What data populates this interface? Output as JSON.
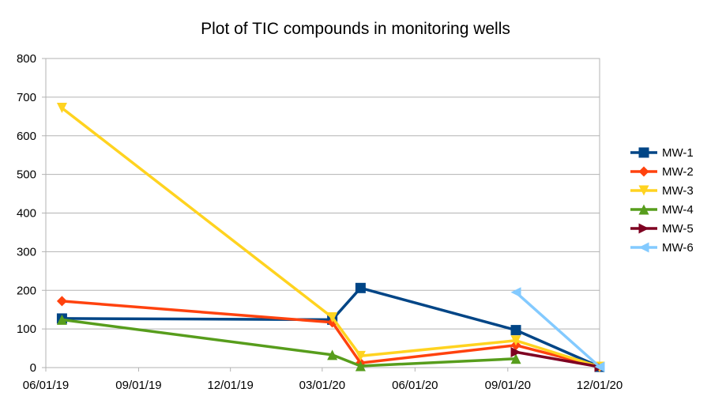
{
  "chart_data": {
    "type": "line",
    "title": "Plot of TIC compounds in monitoring wells",
    "xlabel": "",
    "ylabel": "",
    "xlim": [
      "2019-06-01",
      "2020-12-01"
    ],
    "ylim": [
      0,
      800
    ],
    "y_ticks": [
      0,
      100,
      200,
      300,
      400,
      500,
      600,
      700,
      800
    ],
    "x_ticks": [
      {
        "date": "2019-06-01",
        "label": "06/01/19"
      },
      {
        "date": "2019-09-01",
        "label": "09/01/19"
      },
      {
        "date": "2019-12-01",
        "label": "12/01/19"
      },
      {
        "date": "2020-03-01",
        "label": "03/01/20"
      },
      {
        "date": "2020-06-01",
        "label": "06/01/20"
      },
      {
        "date": "2020-09-01",
        "label": "09/01/20"
      },
      {
        "date": "2020-12-01",
        "label": "12/01/20"
      }
    ],
    "grid": "horizontal",
    "legend_position": "right",
    "series": [
      {
        "name": "MW-1",
        "color": "#004586",
        "marker": "square",
        "points": [
          {
            "x": "2019-06-17",
            "y": 127
          },
          {
            "x": "2020-03-11",
            "y": 124
          },
          {
            "x": "2020-04-08",
            "y": 206
          },
          {
            "x": "2020-09-09",
            "y": 97
          },
          {
            "x": "2020-12-01",
            "y": 2
          }
        ]
      },
      {
        "name": "MW-2",
        "color": "#ff420e",
        "marker": "diamond",
        "points": [
          {
            "x": "2019-06-17",
            "y": 172
          },
          {
            "x": "2020-03-11",
            "y": 117
          },
          {
            "x": "2020-04-08",
            "y": 12
          },
          {
            "x": "2020-09-09",
            "y": 58
          },
          {
            "x": "2020-12-01",
            "y": 2
          }
        ]
      },
      {
        "name": "MW-3",
        "color": "#ffd320",
        "marker": "triangle-down",
        "points": [
          {
            "x": "2019-06-17",
            "y": 672
          },
          {
            "x": "2020-03-11",
            "y": 130
          },
          {
            "x": "2020-04-08",
            "y": 30
          },
          {
            "x": "2020-09-09",
            "y": 70
          },
          {
            "x": "2020-12-01",
            "y": 2
          }
        ]
      },
      {
        "name": "MW-4",
        "color": "#579d1c",
        "marker": "triangle-up",
        "points": [
          {
            "x": "2019-06-17",
            "y": 124
          },
          {
            "x": "2020-03-11",
            "y": 33
          },
          {
            "x": "2020-04-08",
            "y": 4
          },
          {
            "x": "2020-09-09",
            "y": 23
          }
        ]
      },
      {
        "name": "MW-5",
        "color": "#7e0021",
        "marker": "triangle-right",
        "points": [
          {
            "x": "2020-09-09",
            "y": 40
          },
          {
            "x": "2020-12-01",
            "y": 2
          }
        ]
      },
      {
        "name": "MW-6",
        "color": "#83caff",
        "marker": "triangle-left",
        "points": [
          {
            "x": "2020-09-09",
            "y": 195
          },
          {
            "x": "2020-12-01",
            "y": 2
          }
        ]
      }
    ]
  }
}
